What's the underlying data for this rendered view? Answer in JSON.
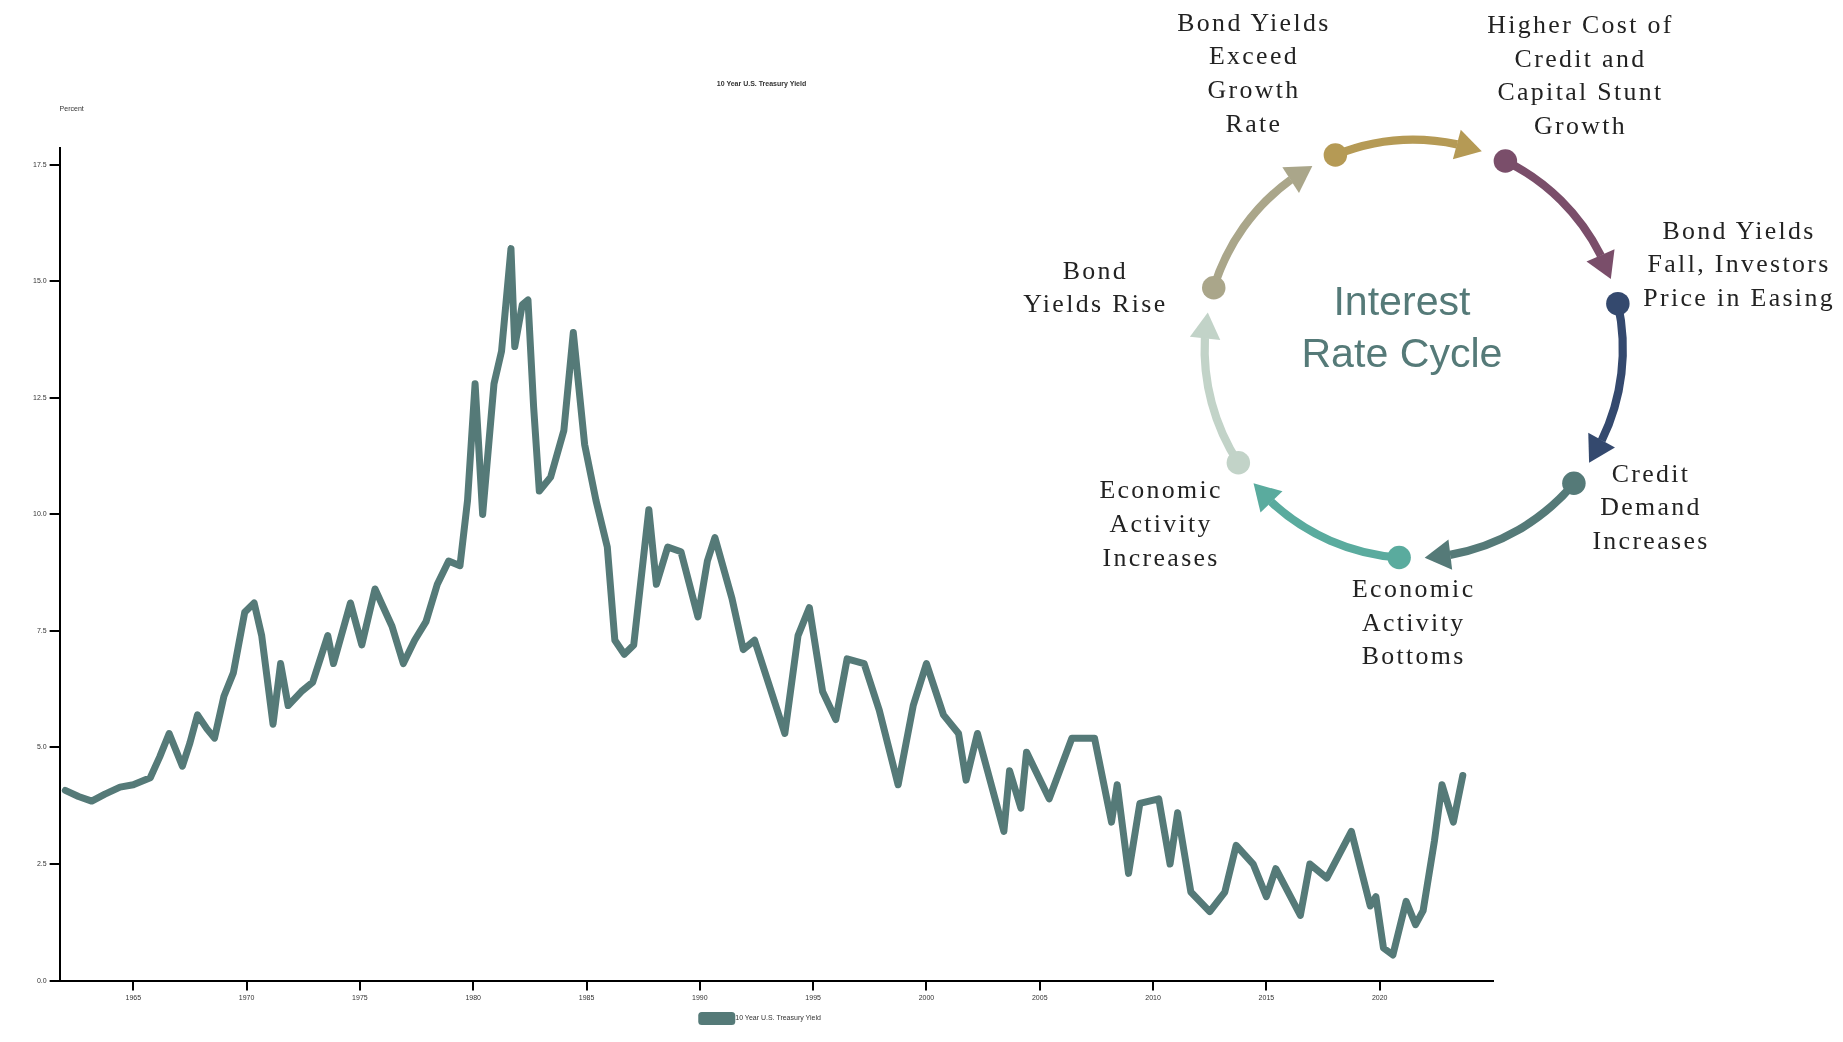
{
  "chart_data": [
    {
      "type": "line",
      "title": "10 Year U.S. Treasury Yield",
      "ylabel": "Percent",
      "x": [
        "1962-01",
        "1962-08",
        "1963-03",
        "1963-10",
        "1964-06",
        "1965-01",
        "1965-10",
        "1966-03",
        "1966-08",
        "1967-03",
        "1967-07",
        "1967-11",
        "1968-04",
        "1968-08",
        "1969-01",
        "1969-06",
        "1969-12",
        "1970-05",
        "1970-09",
        "1971-03",
        "1971-07",
        "1971-11",
        "1972-06",
        "1972-12",
        "1973-08",
        "1973-11",
        "1974-08",
        "1975-02",
        "1975-09",
        "1976-06",
        "1976-12",
        "1977-06",
        "1977-12",
        "1978-06",
        "1978-12",
        "1979-06",
        "1979-10",
        "1980-02",
        "1980-06",
        "1980-12",
        "1981-04",
        "1981-09",
        "1981-11",
        "1982-03",
        "1982-06",
        "1982-09",
        "1982-12",
        "1983-06",
        "1984-01",
        "1984-06",
        "1984-12",
        "1985-06",
        "1985-12",
        "1986-04",
        "1986-09",
        "1987-02",
        "1987-10",
        "1988-02",
        "1988-08",
        "1989-03",
        "1989-12",
        "1990-05",
        "1990-09",
        "1991-06",
        "1991-12",
        "1992-06",
        "1993-02",
        "1993-10",
        "1994-05",
        "1994-11",
        "1995-06",
        "1996-01",
        "1996-07",
        "1997-04",
        "1997-12",
        "1998-10",
        "1999-06",
        "2000-01",
        "2000-10",
        "2001-06",
        "2001-10",
        "2002-04",
        "2003-06",
        "2003-09",
        "2004-03",
        "2004-06",
        "2005-06",
        "2006-06",
        "2007-06",
        "2008-03",
        "2008-06",
        "2008-12",
        "2009-06",
        "2010-04",
        "2010-10",
        "2011-02",
        "2011-09",
        "2012-07",
        "2013-03",
        "2013-09",
        "2014-06",
        "2015-01",
        "2015-06",
        "2016-07",
        "2016-12",
        "2017-09",
        "2018-10",
        "2019-08",
        "2019-11",
        "2020-03",
        "2020-08",
        "2021-03",
        "2021-08",
        "2021-12",
        "2022-06",
        "2022-10",
        "2023-04",
        "2023-09"
      ],
      "series": [
        {
          "name": "10 Year U.S. Treasury Yield",
          "color": "#557a78",
          "values": [
            4.08,
            3.95,
            3.85,
            4.0,
            4.15,
            4.2,
            4.35,
            4.8,
            5.3,
            4.6,
            5.1,
            5.7,
            5.4,
            5.2,
            6.1,
            6.6,
            7.9,
            8.1,
            7.4,
            5.5,
            6.8,
            5.9,
            6.2,
            6.4,
            7.4,
            6.8,
            8.1,
            7.2,
            8.4,
            7.6,
            6.8,
            7.3,
            7.7,
            8.5,
            9.0,
            8.9,
            10.3,
            12.8,
            10.0,
            12.8,
            13.5,
            15.7,
            13.6,
            14.5,
            14.6,
            12.3,
            10.5,
            10.8,
            11.8,
            13.9,
            11.5,
            10.3,
            9.3,
            7.3,
            7.0,
            7.2,
            10.1,
            8.5,
            9.3,
            9.2,
            7.8,
            9.0,
            9.5,
            8.2,
            7.1,
            7.3,
            6.3,
            5.3,
            7.4,
            8.0,
            6.2,
            5.6,
            6.9,
            6.8,
            5.8,
            4.2,
            5.9,
            6.8,
            5.7,
            5.3,
            4.3,
            5.3,
            3.2,
            4.5,
            3.7,
            4.9,
            3.9,
            5.2,
            5.2,
            3.4,
            4.2,
            2.3,
            3.8,
            3.9,
            2.5,
            3.6,
            1.9,
            1.48,
            1.9,
            2.9,
            2.5,
            1.8,
            2.4,
            1.4,
            2.5,
            2.2,
            3.2,
            1.6,
            1.8,
            0.7,
            0.55,
            1.7,
            1.2,
            1.5,
            3.0,
            4.2,
            3.4,
            4.4
          ]
        }
      ],
      "xlim": [
        "1961-10",
        "2025-01"
      ],
      "ylim": [
        0,
        17.85
      ],
      "xticks": [
        {
          "value": "1965",
          "label": "1965"
        },
        {
          "value": "1970",
          "label": "1970"
        },
        {
          "value": "1975",
          "label": "1975"
        },
        {
          "value": "1980",
          "label": "1980"
        },
        {
          "value": "1985",
          "label": "1985"
        },
        {
          "value": "1990",
          "label": "1990"
        },
        {
          "value": "1995",
          "label": "1995"
        },
        {
          "value": "2000",
          "label": "2000"
        },
        {
          "value": "2005",
          "label": "2005"
        },
        {
          "value": "2010",
          "label": "2010"
        },
        {
          "value": "2015",
          "label": "2015"
        },
        {
          "value": "2020",
          "label": "2020"
        }
      ],
      "yticks": [
        {
          "value": 0,
          "label": "0.0"
        },
        {
          "value": 2.5,
          "label": "2.5"
        },
        {
          "value": 5,
          "label": "5.0"
        },
        {
          "value": 7.5,
          "label": "7.5"
        },
        {
          "value": 10,
          "label": "10.0"
        },
        {
          "value": 12.5,
          "label": "12.5"
        },
        {
          "value": 15,
          "label": "15.0"
        },
        {
          "value": 17.5,
          "label": "17.5"
        }
      ],
      "legend": "bottom",
      "marker": "none",
      "line_style": "solid"
    },
    {
      "type": "other",
      "title": "Interest Rate Cycle",
      "annotations": [
        "Bond Yields\nExceed\nGrowth\nRate",
        "Higher Cost of\nCredit and\nCapital Stunt\nGrowth",
        "Bond Yields\nFall, Investors\nPrice in Easing",
        "Credit\nDemand\nIncreases",
        "Economic\nActivity\nBottoms",
        "Economic\nActivity\nIncreases",
        "Bond\nYields Rise"
      ]
    }
  ]
}
